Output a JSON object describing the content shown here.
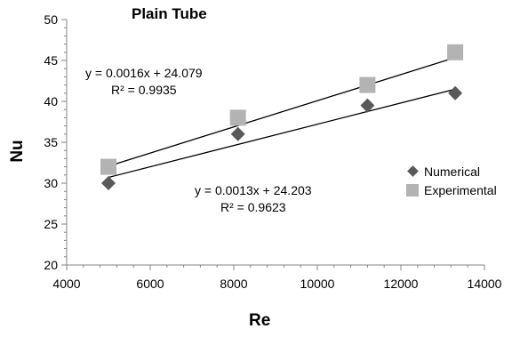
{
  "chart_data": {
    "type": "scatter",
    "title": "Plain Tube",
    "xlabel": "Re",
    "ylabel": "Nu",
    "xlim": [
      4000,
      14000
    ],
    "ylim": [
      20,
      50
    ],
    "x_ticks": [
      "4000",
      "6000",
      "8000",
      "10000",
      "12000",
      "14000"
    ],
    "y_ticks": [
      "20",
      "25",
      "30",
      "35",
      "40",
      "45",
      "50"
    ],
    "grid": false,
    "legend_position": "right",
    "series": [
      {
        "name": "Numerical",
        "marker": "diamond",
        "color": "#595959",
        "x": [
          5000,
          8100,
          11200,
          13300
        ],
        "y": [
          30,
          36,
          39.5,
          41
        ],
        "trendline": {
          "slope": 0.0013,
          "intercept": 24.203,
          "equation": "y = 0.0013x + 24.203",
          "r2": "R² = 0.9623"
        }
      },
      {
        "name": "Experimental",
        "marker": "square",
        "color": "#b3b3b3",
        "x": [
          5000,
          8100,
          11200,
          13300
        ],
        "y": [
          32,
          38,
          42,
          46
        ],
        "trendline": {
          "slope": 0.0016,
          "intercept": 24.079,
          "equation": "y = 0.0016x + 24.079",
          "r2": "R² = 0.9935"
        }
      }
    ]
  }
}
